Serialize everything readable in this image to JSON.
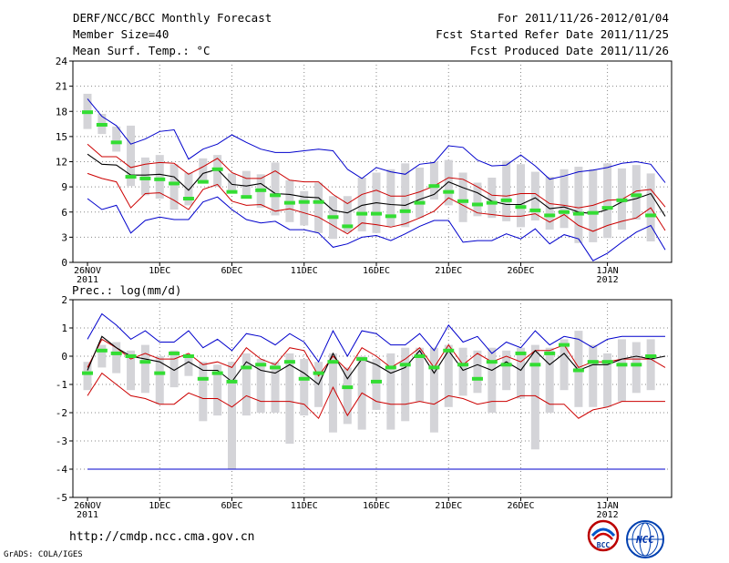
{
  "header": {
    "title": "DERF/NCC/BCC Monthly Forecast",
    "member_size": "Member Size=40",
    "variable": "Mean Surf. Temp.: °C",
    "period": "For 2011/11/26-2012/01/04",
    "fcst_started": "Fcst Started Refer Date 2011/11/25",
    "fcst_produced": "Fcst Produced Date 2011/11/26"
  },
  "precip_label": "Prec.: log(mm/d)",
  "footer": {
    "url": "http://cmdp.ncc.cma.gov.cn",
    "grads": "GrADS: COLA/IGES",
    "logo_bcc": "BCC",
    "logo_ncc": "NCC"
  },
  "colors": {
    "minmax": "#0000cc",
    "spread": "#cc0000",
    "mean": "#000000",
    "box": "#d4d4d8",
    "marker": "#33dd33"
  },
  "chart_data": [
    {
      "type": "line",
      "name": "temperature",
      "title": "Mean Surf. Temp.: °C",
      "ylim": [
        0,
        24
      ],
      "yticks": [
        0,
        3,
        6,
        9,
        12,
        15,
        18,
        21,
        24
      ],
      "x_tick_labels": [
        "26NOV\n2011",
        "1DEC",
        "6DEC",
        "11DEC",
        "16DEC",
        "21DEC",
        "26DEC",
        "1JAN\n2012"
      ],
      "days": 40,
      "series": [
        {
          "name": "max",
          "values": [
            19.5,
            17.4,
            16.3,
            14.1,
            14.7,
            15.6,
            15.8,
            12.3,
            13.5,
            14.1,
            15.2,
            14.3,
            13.5,
            13.1,
            13.1,
            13.3,
            13.5,
            13.3,
            11.1,
            10.0,
            11.3,
            10.8,
            10.5,
            11.7,
            11.9,
            13.9,
            13.7,
            12.2,
            11.5,
            11.6,
            12.8,
            11.5,
            9.9,
            10.3,
            10.8,
            11.0,
            11.3,
            11.8,
            12.0,
            11.7,
            9.5
          ]
        },
        {
          "name": "upper",
          "values": [
            14.1,
            12.6,
            12.6,
            11.3,
            11.7,
            11.9,
            11.8,
            10.5,
            11.4,
            12.4,
            10.7,
            10.0,
            10.0,
            10.9,
            9.8,
            9.6,
            9.6,
            8.1,
            7.0,
            8.1,
            8.6,
            7.9,
            7.9,
            8.4,
            9.1,
            10.1,
            9.9,
            9.0,
            8.0,
            7.9,
            8.2,
            8.2,
            7.0,
            6.8,
            6.5,
            6.8,
            7.4,
            7.5,
            8.5,
            8.7,
            6.6
          ]
        },
        {
          "name": "mean",
          "values": [
            12.9,
            11.7,
            11.6,
            10.4,
            10.4,
            10.5,
            10.2,
            8.6,
            10.6,
            11.1,
            9.3,
            9.1,
            9.4,
            8.2,
            8.1,
            7.8,
            7.7,
            6.2,
            5.9,
            6.8,
            7.1,
            6.9,
            6.8,
            7.5,
            8.1,
            9.6,
            8.9,
            8.3,
            7.3,
            6.9,
            6.9,
            7.7,
            6.4,
            6.6,
            6.0,
            5.8,
            6.3,
            7.2,
            7.6,
            8.2,
            5.5
          ]
        },
        {
          "name": "lower",
          "values": [
            10.6,
            10.0,
            9.6,
            6.5,
            8.2,
            8.3,
            7.4,
            6.3,
            8.7,
            9.3,
            7.3,
            6.8,
            6.9,
            6.1,
            6.4,
            5.9,
            5.4,
            4.4,
            3.4,
            4.7,
            4.5,
            4.2,
            4.6,
            5.3,
            6.1,
            7.7,
            6.8,
            5.9,
            5.7,
            5.5,
            5.5,
            5.8,
            4.8,
            5.7,
            4.4,
            3.7,
            4.4,
            4.9,
            5.3,
            6.5,
            3.8
          ]
        },
        {
          "name": "min",
          "values": [
            7.6,
            6.3,
            6.8,
            3.5,
            5.0,
            5.4,
            5.1,
            5.1,
            7.2,
            7.8,
            6.3,
            5.1,
            4.7,
            4.9,
            3.9,
            3.9,
            3.5,
            1.8,
            2.2,
            3.0,
            3.2,
            2.6,
            3.4,
            4.3,
            5.0,
            5.0,
            2.4,
            2.6,
            2.6,
            3.4,
            2.8,
            4.0,
            2.2,
            3.3,
            2.8,
            0.2,
            1.1,
            2.4,
            3.6,
            4.4,
            1.5
          ]
        }
      ],
      "boxes": {
        "days": [
          0,
          1,
          2,
          3,
          4,
          5,
          6,
          7,
          8,
          9,
          10,
          11,
          12,
          13,
          14,
          15,
          16,
          17,
          18,
          19,
          20,
          21,
          22,
          23,
          24,
          25,
          26,
          27,
          28,
          29,
          30,
          31,
          32,
          33,
          34,
          35,
          36,
          37,
          38,
          39
        ],
        "low": [
          15.9,
          15.3,
          13.2,
          9.1,
          8.0,
          7.6,
          6.3,
          6.8,
          9.4,
          9.0,
          8.6,
          7.8,
          6.5,
          5.6,
          4.8,
          4.4,
          3.5,
          2.8,
          3.6,
          3.7,
          3.5,
          4.3,
          4.2,
          5.3,
          7.5,
          6.8,
          4.8,
          5.5,
          5.3,
          4.9,
          4.2,
          5.0,
          3.9,
          4.1,
          2.3,
          2.4,
          2.9,
          3.9,
          5.1,
          2.5
        ],
        "high": [
          20.1,
          17.7,
          16.2,
          16.3,
          12.5,
          12.8,
          11.7,
          10.7,
          12.4,
          12.8,
          10.6,
          10.9,
          10.5,
          11.9,
          9.8,
          8.5,
          9.5,
          7.9,
          7.9,
          10.1,
          10.7,
          11.1,
          11.8,
          11.3,
          12.0,
          12.2,
          10.7,
          9.5,
          10.1,
          12.1,
          11.7,
          10.8,
          10.2,
          11.1,
          11.4,
          11.1,
          11.8,
          11.2,
          11.6,
          10.6
        ],
        "marker": [
          17.9,
          16.4,
          14.3,
          10.2,
          10.0,
          9.9,
          9.4,
          7.6,
          9.6,
          11.1,
          8.4,
          7.8,
          8.6,
          8.0,
          7.1,
          7.2,
          7.2,
          5.4,
          4.3,
          5.8,
          5.8,
          5.5,
          6.1,
          7.1,
          9.1,
          8.4,
          7.3,
          6.9,
          7.1,
          7.4,
          6.6,
          6.2,
          5.6,
          6.0,
          5.8,
          5.9,
          6.5,
          7.4,
          8.0,
          5.6
        ]
      }
    },
    {
      "type": "line",
      "name": "precipitation",
      "title": "Prec.: log(mm/d)",
      "ylim": [
        -5,
        2
      ],
      "yticks": [
        -5,
        -4,
        -3,
        -2,
        -1,
        0,
        1,
        2
      ],
      "x_tick_labels": [
        "26NOV\n2011",
        "1DEC",
        "6DEC",
        "11DEC",
        "16DEC",
        "21DEC",
        "26DEC",
        "1JAN\n2012"
      ],
      "days": 40,
      "series": [
        {
          "name": "max",
          "values": [
            0.6,
            1.5,
            1.1,
            0.6,
            0.9,
            0.5,
            0.5,
            0.9,
            0.3,
            0.6,
            0.2,
            0.8,
            0.7,
            0.4,
            0.8,
            0.5,
            -0.2,
            0.9,
            0.0,
            0.9,
            0.8,
            0.4,
            0.4,
            0.8,
            0.2,
            1.1,
            0.5,
            0.7,
            0.1,
            0.5,
            0.3,
            0.9,
            0.4,
            0.7,
            0.6,
            0.3,
            0.6,
            0.7,
            0.7,
            0.7,
            0.7
          ]
        },
        {
          "name": "upper",
          "values": [
            -0.4,
            0.6,
            0.3,
            -0.1,
            0.1,
            -0.1,
            -0.1,
            0.1,
            -0.3,
            -0.2,
            -0.4,
            0.3,
            -0.1,
            -0.3,
            0.3,
            0.2,
            -0.7,
            0.0,
            -0.5,
            0.3,
            0.0,
            -0.4,
            -0.1,
            0.3,
            -0.4,
            0.4,
            -0.3,
            0.1,
            -0.2,
            0.0,
            -0.2,
            0.2,
            0.2,
            0.4,
            -0.4,
            -0.2,
            -0.2,
            -0.1,
            -0.1,
            -0.1,
            -0.4
          ]
        },
        {
          "name": "mean",
          "values": [
            -0.5,
            0.7,
            0.3,
            0.0,
            -0.1,
            -0.2,
            -0.5,
            -0.2,
            -0.5,
            -0.5,
            -0.9,
            -0.2,
            -0.5,
            -0.6,
            -0.3,
            -0.6,
            -1.0,
            0.1,
            -0.8,
            -0.1,
            -0.3,
            -0.6,
            -0.4,
            0.2,
            -0.6,
            0.2,
            -0.5,
            -0.3,
            -0.5,
            -0.2,
            -0.5,
            0.2,
            -0.3,
            0.1,
            -0.5,
            -0.3,
            -0.3,
            -0.1,
            0.0,
            -0.1,
            0.0
          ]
        },
        {
          "name": "lower",
          "values": [
            -1.4,
            -0.6,
            -1.0,
            -1.4,
            -1.5,
            -1.7,
            -1.7,
            -1.3,
            -1.5,
            -1.5,
            -1.8,
            -1.4,
            -1.6,
            -1.6,
            -1.6,
            -1.7,
            -2.2,
            -1.1,
            -2.1,
            -1.3,
            -1.6,
            -1.7,
            -1.7,
            -1.6,
            -1.7,
            -1.4,
            -1.5,
            -1.7,
            -1.6,
            -1.6,
            -1.4,
            -1.4,
            -1.7,
            -1.7,
            -2.2,
            -1.9,
            -1.8,
            -1.6,
            -1.6,
            -1.6,
            -1.6
          ]
        },
        {
          "name": "min",
          "values": [
            -4.0,
            -4.0,
            -4.0,
            -4.0,
            -4.0,
            -4.0,
            -4.0,
            -4.0,
            -4.0,
            -4.0,
            -4.0,
            -4.0,
            -4.0,
            -4.0,
            -4.0,
            -4.0,
            -4.0,
            -4.0,
            -4.0,
            -4.0,
            -4.0,
            -4.0,
            -4.0,
            -4.0,
            -4.0,
            -4.0,
            -4.0,
            -4.0,
            -4.0,
            -4.0,
            -4.0,
            -4.0,
            -4.0,
            -4.0,
            -4.0,
            -4.0,
            -4.0,
            -4.0,
            -4.0,
            -4.0,
            -4.0
          ]
        }
      ],
      "boxes": {
        "days": [
          0,
          1,
          2,
          3,
          4,
          5,
          6,
          7,
          8,
          9,
          10,
          11,
          12,
          13,
          14,
          15,
          16,
          17,
          18,
          19,
          20,
          21,
          22,
          23,
          24,
          25,
          26,
          27,
          28,
          29,
          30,
          31,
          32,
          33,
          34,
          35,
          36,
          37,
          38,
          39
        ],
        "low": [
          -1.2,
          -0.4,
          -0.6,
          -1.2,
          -1.3,
          -1.7,
          -1.1,
          -0.7,
          -2.3,
          -2.1,
          -4.0,
          -2.1,
          -2.0,
          -2.0,
          -3.1,
          -2.1,
          -1.8,
          -2.7,
          -2.4,
          -2.6,
          -1.9,
          -2.6,
          -2.3,
          -1.6,
          -2.7,
          -1.8,
          -1.4,
          -1.3,
          -2.0,
          -1.2,
          -1.5,
          -3.3,
          -2.0,
          -1.2,
          -1.8,
          -1.8,
          -1.8,
          -1.6,
          -1.3,
          -1.2
        ],
        "high": [
          -0.2,
          0.4,
          0.5,
          0.2,
          0.4,
          0.0,
          0.2,
          0.0,
          -0.2,
          -0.3,
          -0.2,
          0.1,
          -0.1,
          -0.2,
          0.1,
          -0.1,
          -0.2,
          0.1,
          -0.4,
          0.0,
          -0.1,
          0.1,
          0.3,
          0.3,
          0.3,
          0.4,
          0.3,
          0.2,
          0.3,
          0.2,
          0.3,
          0.4,
          0.3,
          0.6,
          0.9,
          0.4,
          0.1,
          0.6,
          0.5,
          0.6
        ],
        "marker": [
          -0.6,
          0.2,
          0.1,
          0.0,
          -0.2,
          -0.6,
          0.1,
          0.0,
          -0.8,
          -0.6,
          -0.9,
          -0.4,
          -0.3,
          -0.4,
          -0.2,
          -0.8,
          -0.6,
          -0.2,
          -1.1,
          -0.1,
          -0.9,
          -0.4,
          -0.3,
          0.0,
          -0.4,
          0.2,
          -0.3,
          -0.8,
          -0.2,
          -0.3,
          0.1,
          -0.3,
          0.1,
          0.4,
          -0.5,
          -0.2,
          -0.2,
          -0.3,
          -0.3,
          0.0
        ]
      }
    }
  ]
}
